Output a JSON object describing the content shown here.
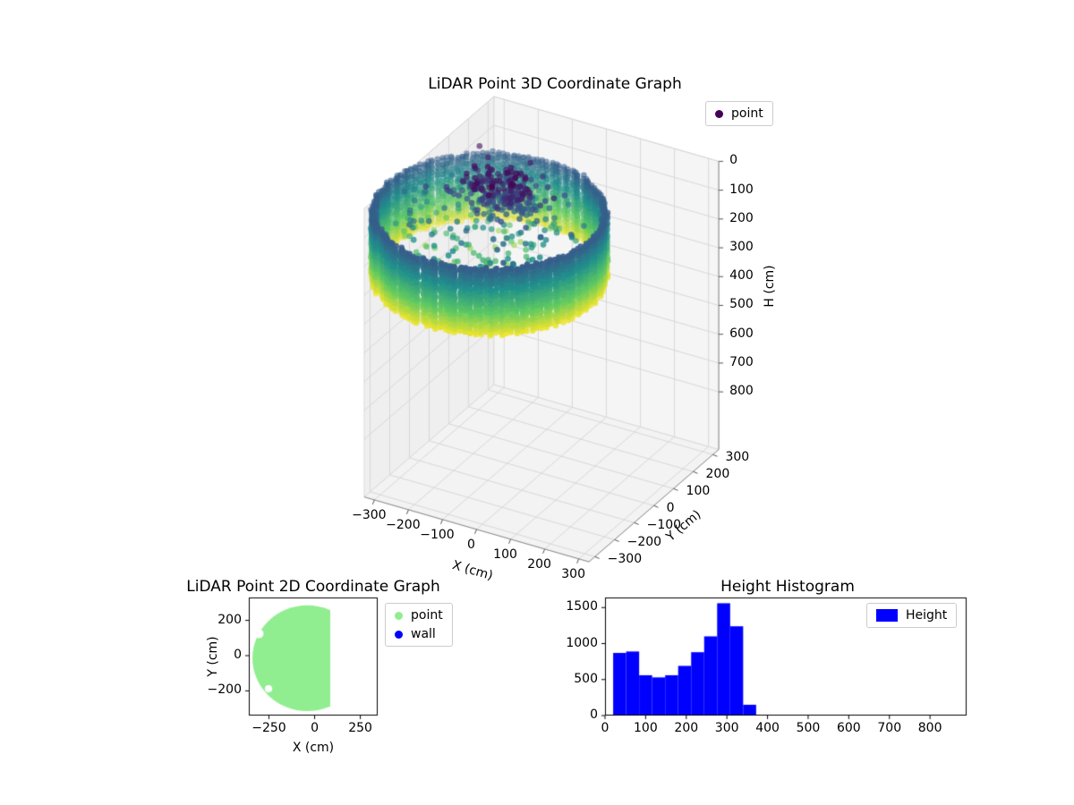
{
  "figure": {
    "background": "#ffffff"
  },
  "chart_data": [
    {
      "id": "lidar-3d",
      "type": "scatter3d",
      "title": "LiDAR Point 3D Coordinate Graph",
      "xlabel": "X (cm)",
      "ylabel": "Y (cm)",
      "zlabel": "H (cm)",
      "xticks": [
        -300,
        -200,
        -100,
        0,
        100,
        200,
        300
      ],
      "yticks": [
        -300,
        -200,
        -100,
        0,
        100,
        200,
        300
      ],
      "hticks": [
        0,
        100,
        200,
        300,
        400,
        500,
        600,
        700,
        800
      ],
      "xlim": [
        -330,
        330
      ],
      "ylim": [
        -330,
        330
      ],
      "hlim": [
        0,
        1000
      ],
      "h_axis_inverted": true,
      "view": {
        "elev": 30,
        "azim": -60
      },
      "colormap": "viridis",
      "color_h_range": [
        40,
        375
      ],
      "legend": [
        {
          "label": "point",
          "color": "#440154",
          "marker": "dot"
        }
      ],
      "point_cloud": {
        "wall": {
          "center_x": -150,
          "center_y": -5,
          "radius": 295,
          "h_min": 140,
          "h_max": 365,
          "h_step": 8,
          "columns": 140
        },
        "cluster": {
          "center": [
            -150,
            55,
            115
          ],
          "sigma": [
            55,
            45,
            38
          ],
          "count": 260
        },
        "floor_scatter": {
          "radius": 270,
          "h_min": 150,
          "h_max": 330,
          "count": 220
        }
      }
    },
    {
      "id": "lidar-2d",
      "type": "scatter",
      "title": "LiDAR Point 2D Coordinate Graph",
      "xlabel": "X (cm)",
      "ylabel": "Y (cm)",
      "xticks": [
        -250,
        0,
        250
      ],
      "yticks": [
        200,
        0,
        -200
      ],
      "xlim": [
        -360,
        345
      ],
      "ylim": [
        -340,
        330
      ],
      "legend": [
        {
          "label": "point",
          "color": "#90ee90",
          "marker": "dot"
        },
        {
          "label": "wall",
          "color": "#0000ff",
          "marker": "dot"
        }
      ],
      "region": {
        "center": [
          -40,
          -15
        ],
        "radius": 300,
        "x_clip_max": 85,
        "color": "#90ee90",
        "notches": [
          {
            "x": -305,
            "y": 125,
            "r": 26
          },
          {
            "x": -252,
            "y": -188,
            "r": 20
          }
        ]
      }
    },
    {
      "id": "height-histogram",
      "type": "bar",
      "title": "Height Histogram",
      "legend": [
        {
          "label": "Height",
          "color": "#0000ff",
          "marker": "patch"
        }
      ],
      "bar_color": "#0000ff",
      "bin_start": 20,
      "bin_width": 32,
      "values": [
        870,
        890,
        560,
        530,
        560,
        690,
        880,
        1100,
        1560,
        1240,
        150
      ],
      "xticks": [
        0,
        100,
        200,
        300,
        400,
        500,
        600,
        700,
        800
      ],
      "yticks": [
        0,
        500,
        1000,
        1500
      ],
      "xlim": [
        0,
        890
      ],
      "ylim": [
        0,
        1640
      ]
    }
  ]
}
